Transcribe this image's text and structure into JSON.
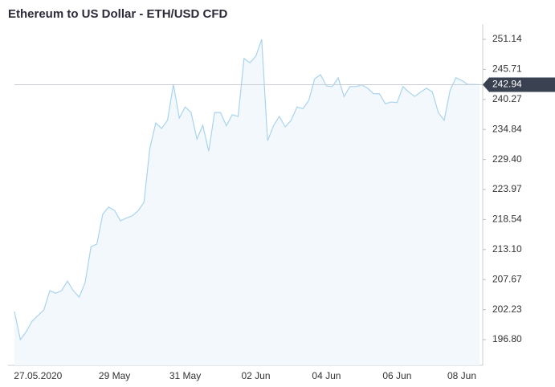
{
  "chart_data": {
    "type": "area",
    "title": "Ethereum to US Dollar - ETH/USD CFD",
    "categories": [
      null,
      null,
      null,
      null,
      "27.05.2020",
      null,
      null,
      null,
      null,
      null,
      null,
      null,
      null,
      null,
      null,
      null,
      null,
      "29 May",
      null,
      null,
      null,
      null,
      null,
      null,
      null,
      null,
      null,
      null,
      null,
      "31 May",
      null,
      null,
      null,
      null,
      null,
      null,
      null,
      null,
      null,
      null,
      null,
      "02 Jun",
      null,
      null,
      null,
      null,
      null,
      null,
      null,
      null,
      null,
      null,
      null,
      "04 Jun",
      null,
      null,
      null,
      null,
      null,
      null,
      null,
      null,
      null,
      null,
      null,
      "06 Jun",
      null,
      null,
      null,
      null,
      null,
      null,
      null,
      null,
      null,
      null,
      "08 Jun",
      null,
      null,
      null
    ],
    "values": [
      201.89,
      196.8,
      198.25,
      200.14,
      201.16,
      202.18,
      205.66,
      205.2,
      205.66,
      207.4,
      205.66,
      204.5,
      207.1,
      213.6,
      214.1,
      219.5,
      220.8,
      220.2,
      218.3,
      218.8,
      219.2,
      220.1,
      221.65,
      231.4,
      236.0,
      235.0,
      236.5,
      243.0,
      236.9,
      238.9,
      237.9,
      233.1,
      235.6,
      230.9,
      237.9,
      237.9,
      235.5,
      237.5,
      237.2,
      247.7,
      246.9,
      248.1,
      251.14,
      232.8,
      235.5,
      237.2,
      235.3,
      236.5,
      238.9,
      238.6,
      240.1,
      244.0,
      244.75,
      242.7,
      242.6,
      244.2,
      240.8,
      242.6,
      242.6,
      242.9,
      242.3,
      241.3,
      241.3,
      239.5,
      239.8,
      239.7,
      242.6,
      241.6,
      240.8,
      241.6,
      242.3,
      241.6,
      237.9,
      236.5,
      241.9,
      244.2,
      243.7,
      243.0,
      243.0,
      242.94
    ],
    "color": "#a9d4ec",
    "fill": "#f3f8fc",
    "current_value": 242.94,
    "ylim": [
      192.15,
      252.45
    ],
    "yticks": [
      {
        "value": 196.8,
        "label": "196.80"
      },
      202.23,
      207.67,
      {
        "value": 213.1,
        "label": "213.10"
      },
      218.54,
      223.97,
      {
        "value": 229.4,
        "label": "229.40"
      },
      234.84,
      240.27,
      245.71,
      251.14
    ],
    "y_axis_side": "right",
    "grid": false
  }
}
